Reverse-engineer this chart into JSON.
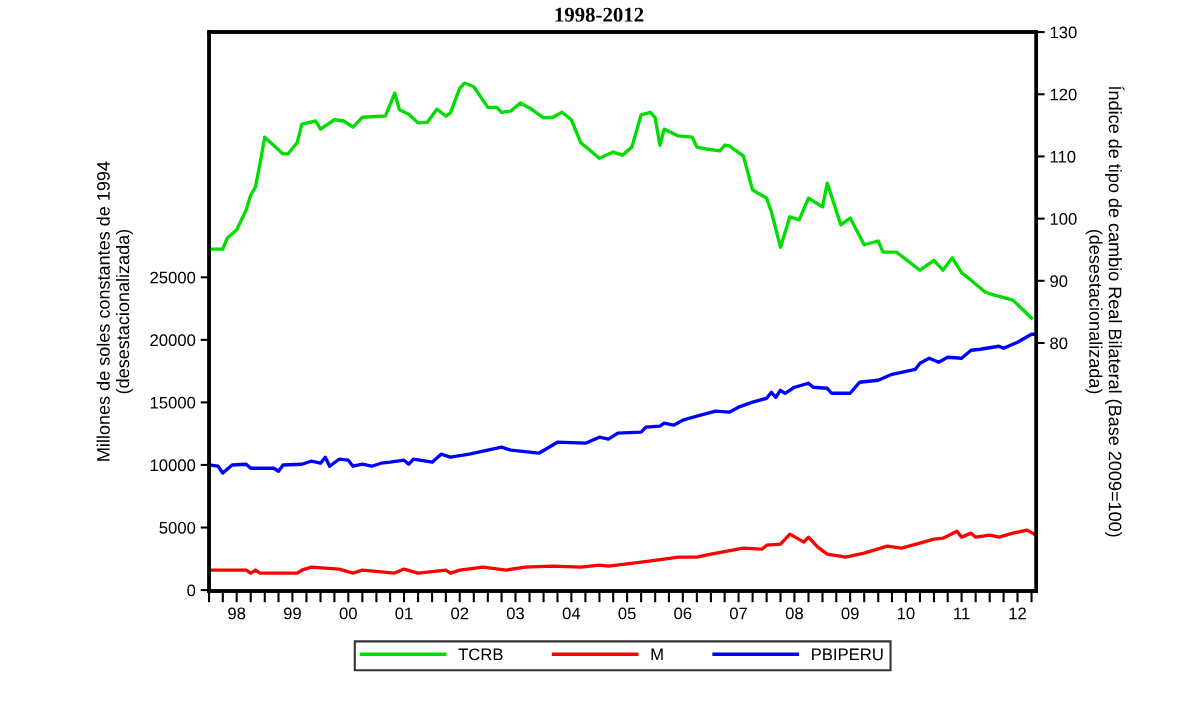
{
  "chart_data": {
    "type": "line",
    "title": "1998-2012",
    "ylabel": "Millones de soles constantes de 1994\n(desestacionalizada)",
    "y2label": "Índice de tipo de cambio Real Bilateral (Base 2009=100)\n(desestacionalizada)",
    "xlim": [
      "1998-01",
      "2012-11"
    ],
    "ylim": [
      -80,
      44600
    ],
    "y2lim": [
      40.1,
      130
    ],
    "yticks": [
      0,
      5000,
      10000,
      15000,
      20000,
      25000
    ],
    "y2ticks": [
      80,
      90,
      100,
      110,
      120,
      130
    ],
    "xticks": [
      {
        "value": "1998-01",
        "label": null
      },
      {
        "value": "1998-04",
        "label": null
      },
      {
        "value": "1998-07",
        "label": "98"
      },
      {
        "value": "1998-10",
        "label": null
      },
      {
        "value": "1999-01",
        "label": null
      },
      {
        "value": "1999-04",
        "label": null
      },
      {
        "value": "1999-07",
        "label": "99"
      },
      {
        "value": "1999-10",
        "label": null
      },
      {
        "value": "2000-01",
        "label": null
      },
      {
        "value": "2000-04",
        "label": null
      },
      {
        "value": "2000-07",
        "label": "00"
      },
      {
        "value": "2000-10",
        "label": null
      },
      {
        "value": "2001-01",
        "label": null
      },
      {
        "value": "2001-04",
        "label": null
      },
      {
        "value": "2001-07",
        "label": "01"
      },
      {
        "value": "2001-10",
        "label": null
      },
      {
        "value": "2002-01",
        "label": null
      },
      {
        "value": "2002-04",
        "label": null
      },
      {
        "value": "2002-07",
        "label": "02"
      },
      {
        "value": "2002-10",
        "label": null
      },
      {
        "value": "2003-01",
        "label": null
      },
      {
        "value": "2003-04",
        "label": null
      },
      {
        "value": "2003-07",
        "label": "03"
      },
      {
        "value": "2003-10",
        "label": null
      },
      {
        "value": "2004-01",
        "label": null
      },
      {
        "value": "2004-04",
        "label": null
      },
      {
        "value": "2004-07",
        "label": "04"
      },
      {
        "value": "2004-10",
        "label": null
      },
      {
        "value": "2005-01",
        "label": null
      },
      {
        "value": "2005-04",
        "label": null
      },
      {
        "value": "2005-07",
        "label": "05"
      },
      {
        "value": "2005-10",
        "label": null
      },
      {
        "value": "2006-01",
        "label": null
      },
      {
        "value": "2006-04",
        "label": null
      },
      {
        "value": "2006-07",
        "label": "06"
      },
      {
        "value": "2006-10",
        "label": null
      },
      {
        "value": "2007-01",
        "label": null
      },
      {
        "value": "2007-04",
        "label": null
      },
      {
        "value": "2007-07",
        "label": "07"
      },
      {
        "value": "2007-10",
        "label": null
      },
      {
        "value": "2008-01",
        "label": null
      },
      {
        "value": "2008-04",
        "label": null
      },
      {
        "value": "2008-07",
        "label": "08"
      },
      {
        "value": "2008-10",
        "label": null
      },
      {
        "value": "2009-01",
        "label": null
      },
      {
        "value": "2009-04",
        "label": null
      },
      {
        "value": "2009-07",
        "label": "09"
      },
      {
        "value": "2009-10",
        "label": null
      },
      {
        "value": "2010-01",
        "label": null
      },
      {
        "value": "2010-04",
        "label": null
      },
      {
        "value": "2010-07",
        "label": "10"
      },
      {
        "value": "2010-10",
        "label": null
      },
      {
        "value": "2011-01",
        "label": null
      },
      {
        "value": "2011-04",
        "label": null
      },
      {
        "value": "2011-07",
        "label": "11"
      },
      {
        "value": "2011-10",
        "label": null
      },
      {
        "value": "2012-01",
        "label": null
      },
      {
        "value": "2012-04",
        "label": null
      },
      {
        "value": "2012-07",
        "label": "12"
      },
      {
        "value": "2012-10",
        "label": null
      }
    ],
    "grid": false,
    "legend": "bottom",
    "marker": "none",
    "line_style": "solid",
    "series": [
      {
        "name": "TCRB",
        "color": "#00dd00",
        "axis": "y2",
        "x": [
          "1998-01",
          "1998-04",
          "1998-05",
          "1998-07",
          "1998-09",
          "1998-10",
          "1998-11",
          "1998-12",
          "1999-01",
          "1999-05",
          "1999-06",
          "1999-08",
          "1999-09",
          "1999-12",
          "2000-01",
          "2000-04",
          "2000-06",
          "2000-08",
          "2000-10",
          "2001-03",
          "2001-05",
          "2001-06",
          "2001-08",
          "2001-10",
          "2001-12",
          "2002-02",
          "2002-04",
          "2002-05",
          "2002-07",
          "2002-08",
          "2002-10",
          "2003-01",
          "2003-03",
          "2003-04",
          "2003-06",
          "2003-08",
          "2003-10",
          "2004-01",
          "2004-03",
          "2004-05",
          "2004-07",
          "2004-09",
          "2005-01",
          "2005-04",
          "2005-06",
          "2005-08",
          "2005-10",
          "2005-12",
          "2006-01",
          "2006-02",
          "2006-03",
          "2006-06",
          "2006-09",
          "2006-10",
          "2006-12",
          "2007-03",
          "2007-04",
          "2007-05",
          "2007-08",
          "2007-10",
          "2008-01",
          "2008-02",
          "2008-04",
          "2008-06",
          "2008-08",
          "2008-10",
          "2009-01",
          "2009-02",
          "2009-05",
          "2009-07",
          "2009-10",
          "2010-01",
          "2010-02",
          "2010-05",
          "2010-10",
          "2011-01",
          "2011-03",
          "2011-05",
          "2011-07",
          "2011-09",
          "2011-12",
          "2012-02",
          "2012-06",
          "2012-10"
        ],
        "values": [
          95.1,
          95.1,
          96.9,
          98.2,
          101.4,
          103.8,
          105.1,
          108.9,
          113.1,
          110.4,
          110.4,
          112.2,
          115.2,
          115.7,
          114.4,
          115.9,
          115.7,
          114.7,
          116.3,
          116.5,
          120.2,
          117.5,
          116.8,
          115.4,
          115.5,
          117.6,
          116.5,
          117.0,
          121.0,
          121.8,
          121.2,
          117.9,
          117.9,
          117.1,
          117.3,
          118.6,
          117.8,
          116.2,
          116.3,
          117.1,
          115.9,
          112.2,
          109.7,
          110.7,
          110.2,
          111.5,
          116.7,
          117.1,
          116.2,
          111.8,
          114.4,
          113.3,
          113.1,
          111.5,
          111.2,
          110.9,
          111.8,
          111.7,
          110.1,
          104.6,
          103.3,
          101.1,
          95.4,
          100.3,
          99.8,
          103.3,
          101.9,
          105.7,
          99.0,
          100.1,
          95.8,
          96.4,
          94.6,
          94.6,
          91.7,
          93.3,
          91.7,
          93.7,
          91.3,
          90.1,
          88.2,
          87.7,
          86.9,
          84.0
        ]
      },
      {
        "name": "M",
        "color": "#ff0000",
        "axis": "y",
        "x": [
          "1998-01",
          "1998-09",
          "1998-10",
          "1998-11",
          "1998-12",
          "1999-08",
          "1999-09",
          "1999-11",
          "2000-05",
          "2000-08",
          "2000-10",
          "2001-05",
          "2001-07",
          "2001-10",
          "2002-04",
          "2002-05",
          "2002-07",
          "2002-12",
          "2003-05",
          "2003-09",
          "2004-03",
          "2004-09",
          "2005-01",
          "2005-03",
          "2005-10",
          "2006-03",
          "2006-06",
          "2006-10",
          "2007-01",
          "2007-08",
          "2007-12",
          "2008-01",
          "2008-04",
          "2008-06",
          "2008-09",
          "2008-10",
          "2008-12",
          "2009-02",
          "2009-06",
          "2009-10",
          "2010-03",
          "2010-06",
          "2010-10",
          "2011-01",
          "2011-03",
          "2011-06",
          "2011-07",
          "2011-09",
          "2011-10",
          "2012-01",
          "2012-03",
          "2012-06",
          "2012-09",
          "2012-11"
        ],
        "values": [
          1600,
          1600,
          1360,
          1600,
          1360,
          1360,
          1600,
          1840,
          1680,
          1360,
          1600,
          1360,
          1680,
          1360,
          1600,
          1360,
          1600,
          1840,
          1600,
          1840,
          1920,
          1840,
          2000,
          1920,
          2240,
          2480,
          2640,
          2640,
          2880,
          3350,
          3270,
          3590,
          3670,
          4470,
          3830,
          4230,
          3430,
          2880,
          2640,
          2960,
          3510,
          3350,
          3750,
          4070,
          4150,
          4710,
          4230,
          4550,
          4230,
          4390,
          4230,
          4550,
          4790,
          4390
        ]
      },
      {
        "name": "PBIPERU",
        "color": "#0000ff",
        "axis": "y",
        "x": [
          "1998-01",
          "1998-03",
          "1998-04",
          "1998-06",
          "1998-09",
          "1998-10",
          "1999-03",
          "1999-04",
          "1999-05",
          "1999-09",
          "1999-11",
          "2000-01",
          "2000-02",
          "2000-03",
          "2000-05",
          "2000-07",
          "2000-08",
          "2000-10",
          "2000-12",
          "2001-02",
          "2001-04",
          "2001-07",
          "2001-08",
          "2001-09",
          "2002-01",
          "2002-03",
          "2002-05",
          "2002-09",
          "2003-04",
          "2003-06",
          "2003-10",
          "2003-12",
          "2004-04",
          "2004-10",
          "2005-01",
          "2005-03",
          "2005-05",
          "2005-10",
          "2005-11",
          "2006-02",
          "2006-03",
          "2006-05",
          "2006-07",
          "2006-10",
          "2007-02",
          "2007-05",
          "2007-07",
          "2007-10",
          "2008-01",
          "2008-02",
          "2008-03",
          "2008-04",
          "2008-05",
          "2008-07",
          "2008-10",
          "2008-11",
          "2009-02",
          "2009-03",
          "2009-07",
          "2009-09",
          "2010-01",
          "2010-04",
          "2010-09",
          "2010-10",
          "2010-12",
          "2011-02",
          "2011-04",
          "2011-07",
          "2011-09",
          "2011-11",
          "2012-03",
          "2012-04",
          "2012-07",
          "2012-10",
          "2012-11"
        ],
        "values": [
          10000,
          9900,
          9350,
          10000,
          10060,
          9740,
          9740,
          9500,
          10000,
          10060,
          10300,
          10140,
          10620,
          9900,
          10460,
          10380,
          9900,
          10060,
          9900,
          10140,
          10220,
          10380,
          10060,
          10460,
          10220,
          10860,
          10620,
          10860,
          11420,
          11180,
          11020,
          10940,
          11820,
          11740,
          12220,
          12060,
          12540,
          12620,
          13020,
          13100,
          13340,
          13180,
          13580,
          13900,
          14300,
          14220,
          14620,
          15020,
          15330,
          15810,
          15410,
          15970,
          15730,
          16210,
          16530,
          16210,
          16130,
          15730,
          15730,
          16610,
          16770,
          17250,
          17650,
          18130,
          18530,
          18210,
          18610,
          18530,
          19170,
          19250,
          19490,
          19330,
          19810,
          20450,
          20450
        ]
      }
    ]
  }
}
